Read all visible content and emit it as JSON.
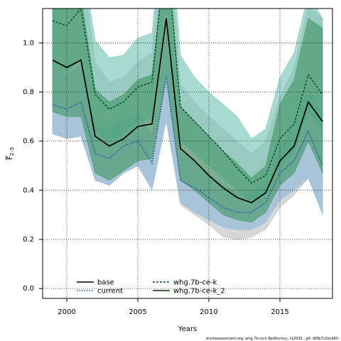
{
  "chart_data": {
    "type": "area",
    "xlabel": "Years",
    "ylabel": "F̅ 2–5",
    "ylabel_main": "F",
    "ylabel_sub": "2–5",
    "xlim": [
      1998.3,
      2018.7
    ],
    "ylim": [
      -0.04,
      1.14
    ],
    "xticks": [
      2000,
      2005,
      2010,
      2015
    ],
    "yticks": [
      0.0,
      0.2,
      0.4,
      0.6,
      0.8,
      1.0
    ],
    "ytick_labels": [
      "0.0",
      "0.2",
      "0.4",
      "0.6",
      "0.8",
      "1.0"
    ],
    "grid": true,
    "legend_placement": "bottom-left",
    "x": [
      1999,
      2000,
      2001,
      2002,
      2003,
      2004,
      2005,
      2006,
      2007,
      2008,
      2009,
      2010,
      2011,
      2012,
      2013,
      2014,
      2015,
      2016,
      2017,
      2018
    ],
    "series": [
      {
        "name": "base",
        "color": "#000000",
        "dash": "solid",
        "band_color": "#bdbdbd",
        "values": [
          0.93,
          0.9,
          0.93,
          0.62,
          0.58,
          0.61,
          0.66,
          0.67,
          1.1,
          0.57,
          0.52,
          0.46,
          0.41,
          0.37,
          0.35,
          0.39,
          0.52,
          0.58,
          0.76,
          0.68
        ],
        "lower": [
          0.63,
          0.61,
          0.62,
          0.44,
          0.42,
          0.47,
          0.5,
          0.41,
          0.7,
          0.34,
          0.3,
          0.26,
          0.21,
          0.2,
          0.21,
          0.24,
          0.33,
          0.38,
          0.45,
          0.31
        ],
        "upper": [
          1.35,
          1.3,
          1.36,
          0.92,
          0.84,
          0.86,
          0.92,
          0.96,
          1.6,
          0.83,
          0.76,
          0.7,
          0.65,
          0.6,
          0.55,
          0.6,
          0.78,
          0.9,
          1.15,
          1.1
        ]
      },
      {
        "name": "current",
        "color": "#1f4e99",
        "dash": "dotted",
        "band_color": "#8bb8d8",
        "values": [
          0.75,
          0.73,
          0.76,
          0.55,
          0.53,
          0.58,
          0.6,
          0.51,
          0.86,
          0.44,
          0.41,
          0.37,
          0.33,
          0.31,
          0.31,
          0.35,
          0.47,
          0.52,
          0.64,
          0.5
        ],
        "lower": [
          0.63,
          0.61,
          0.62,
          0.44,
          0.42,
          0.47,
          0.5,
          0.4,
          0.68,
          0.35,
          0.31,
          0.28,
          0.25,
          0.24,
          0.24,
          0.27,
          0.36,
          0.4,
          0.45,
          0.3
        ],
        "upper": [
          0.9,
          0.87,
          0.91,
          0.66,
          0.65,
          0.69,
          0.72,
          0.62,
          1.04,
          0.56,
          0.52,
          0.47,
          0.42,
          0.39,
          0.39,
          0.44,
          0.58,
          0.66,
          0.82,
          0.69
        ]
      },
      {
        "name": "whg.7b-ce-k",
        "color": "#0b4f2e",
        "dash": "dashed",
        "band_color": "#6fc2b2",
        "values": [
          1.09,
          1.07,
          1.14,
          0.79,
          0.73,
          0.76,
          0.82,
          0.84,
          1.4,
          0.74,
          0.68,
          0.62,
          0.56,
          0.49,
          0.43,
          0.46,
          0.61,
          0.67,
          0.87,
          0.79
        ],
        "lower": [
          0.9,
          0.88,
          0.93,
          0.64,
          0.6,
          0.63,
          0.68,
          0.69,
          1.15,
          0.6,
          0.55,
          0.5,
          0.45,
          0.4,
          0.35,
          0.38,
          0.5,
          0.56,
          0.72,
          0.64
        ],
        "upper": [
          1.32,
          1.28,
          1.38,
          1.01,
          0.94,
          0.95,
          1.02,
          1.04,
          1.7,
          0.95,
          0.86,
          0.8,
          0.75,
          0.7,
          0.61,
          0.65,
          0.86,
          0.96,
          1.2,
          1.1
        ]
      },
      {
        "name": "whg.7b-ce-k_2",
        "color": "#003300",
        "dash": "solid",
        "band_color": "#3d9560",
        "values": [
          0.93,
          0.9,
          0.93,
          0.62,
          0.58,
          0.61,
          0.66,
          0.67,
          1.1,
          0.57,
          0.52,
          0.46,
          0.41,
          0.37,
          0.35,
          0.39,
          0.52,
          0.58,
          0.76,
          0.68
        ],
        "lower": [
          0.72,
          0.7,
          0.7,
          0.47,
          0.44,
          0.48,
          0.52,
          0.53,
          0.87,
          0.44,
          0.4,
          0.35,
          0.3,
          0.28,
          0.27,
          0.31,
          0.42,
          0.47,
          0.6,
          0.47
        ],
        "upper": [
          1.17,
          1.14,
          1.19,
          0.81,
          0.76,
          0.79,
          0.85,
          0.87,
          1.4,
          0.74,
          0.68,
          0.62,
          0.56,
          0.51,
          0.45,
          0.5,
          0.75,
          0.85,
          1.1,
          1.06
        ]
      }
    ],
    "footer": "stockassessment.org,  whg.7b-ce-k  RedSurvey,  r12035  ,  git:  df0b7c1bcb83"
  }
}
